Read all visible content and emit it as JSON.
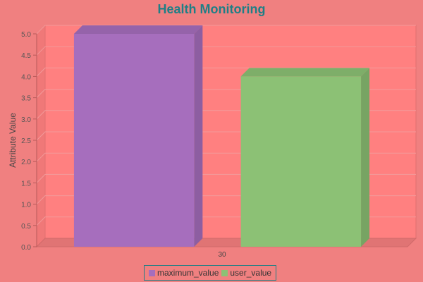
{
  "chart_data": {
    "type": "bar",
    "title": "Health Monitoring",
    "ylabel": "Attribute Value",
    "xlabel": "",
    "categories": [
      "30"
    ],
    "ylim": [
      0,
      5.0
    ],
    "yticks": [
      0.0,
      0.5,
      1.0,
      1.5,
      2.0,
      2.5,
      3.0,
      3.5,
      4.0,
      4.5,
      5.0
    ],
    "ytick_labels": [
      "0.0",
      "0.5",
      "1.0",
      "1.5",
      "2.0",
      "2.5",
      "3.0",
      "3.5",
      "4.0",
      "4.5",
      "5.0"
    ],
    "grid": true,
    "legend_position": "bottom-center",
    "series": [
      {
        "name": "maximum_value",
        "values": [
          5.0
        ],
        "color": "#a66ebd"
      },
      {
        "name": "user_value",
        "values": [
          4.0
        ],
        "color": "#8cc175"
      }
    ]
  },
  "colors": {
    "background": "#f08080",
    "plot_area": "#ff8080",
    "title": "#1f7f86",
    "legend_border": "#1f7f86"
  }
}
